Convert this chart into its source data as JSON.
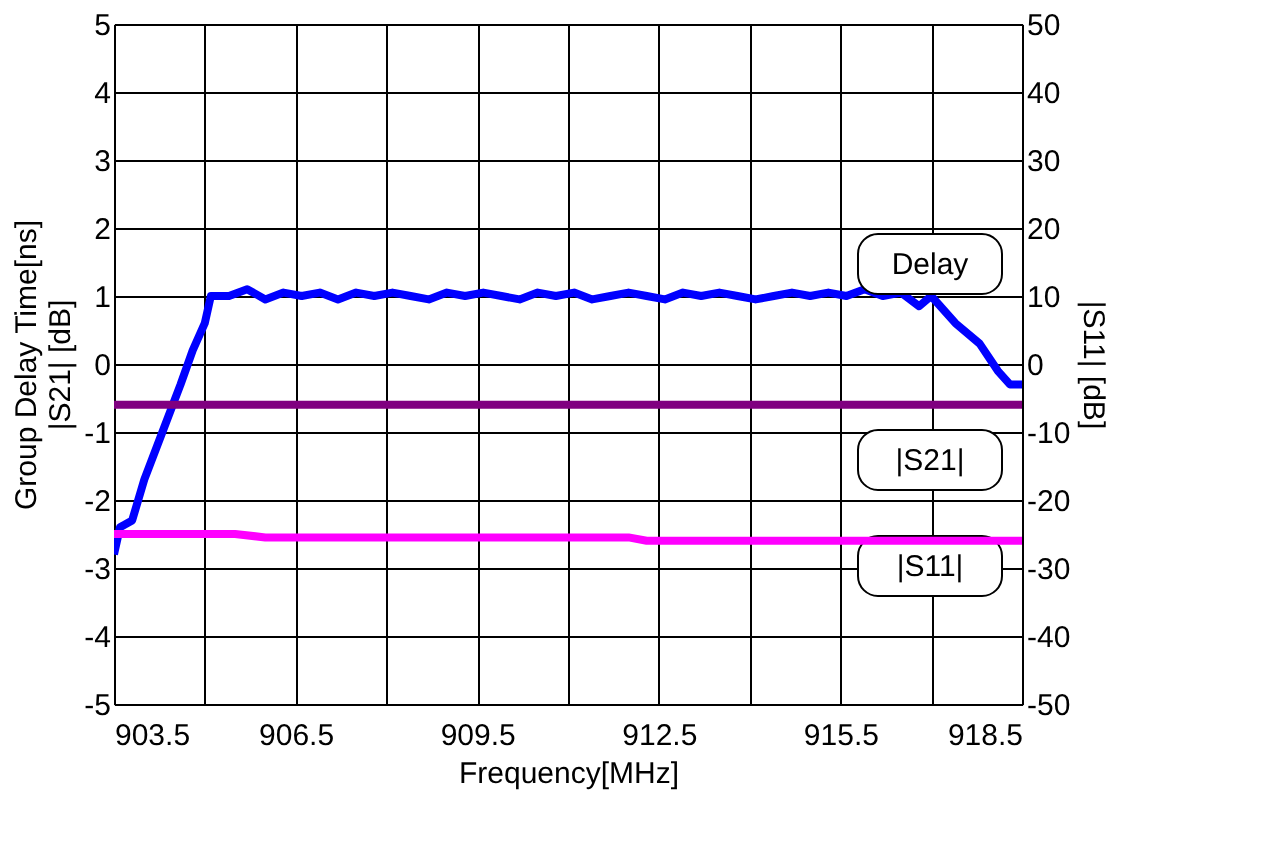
{
  "chart_data": {
    "type": "line",
    "xlabel": "Frequency[MHz]",
    "ylabel": "Group Delay Time[ns]\n|S21| [dB]",
    "y2label": "|S11| [dB]",
    "xlim": [
      903.5,
      918.5
    ],
    "xticks": [
      903.5,
      {
        "value": 905,
        "label": null
      },
      906.5,
      {
        "value": 908,
        "label": null
      },
      909.5,
      {
        "value": 911,
        "label": null
      },
      912.5,
      {
        "value": 914,
        "label": null
      },
      915.5,
      {
        "value": 917,
        "label": null
      },
      918.5
    ],
    "ylim": [
      -5,
      5
    ],
    "yticks": [
      -5,
      -4,
      -3,
      -2,
      -1,
      0,
      1,
      2,
      3,
      4,
      5
    ],
    "y2lim": [
      -50,
      50
    ],
    "y2ticks": [
      -50,
      -40,
      -30,
      -20,
      -10,
      0,
      10,
      20,
      30,
      40,
      50
    ],
    "grid": true,
    "legend": false,
    "line_style": "solid",
    "marker": "none",
    "series": [
      {
        "name": "Delay",
        "color": "#0000ff",
        "x": [
          903.5,
          903.6,
          903.8,
          904.0,
          904.3,
          904.6,
          904.8,
          905.0,
          905.1,
          905.4,
          905.7,
          906.0,
          906.3,
          906.6,
          906.9,
          907.2,
          907.5,
          907.8,
          908.1,
          908.4,
          908.7,
          909.0,
          909.3,
          909.6,
          909.9,
          910.2,
          910.5,
          910.8,
          911.1,
          911.4,
          911.7,
          912.0,
          912.3,
          912.6,
          912.9,
          913.2,
          913.5,
          913.8,
          914.1,
          914.4,
          914.7,
          915.0,
          915.3,
          915.6,
          915.9,
          916.2,
          916.5,
          916.8,
          917.0,
          917.4,
          917.8,
          918.1,
          918.3,
          918.5
        ],
        "values": [
          -2.8,
          -2.4,
          -2.3,
          -1.7,
          -1.0,
          -0.3,
          0.2,
          0.6,
          1.0,
          1.0,
          1.1,
          0.95,
          1.05,
          1.0,
          1.05,
          0.95,
          1.05,
          1.0,
          1.05,
          1.0,
          0.95,
          1.05,
          1.0,
          1.05,
          1.0,
          0.95,
          1.05,
          1.0,
          1.05,
          0.95,
          1.0,
          1.05,
          1.0,
          0.95,
          1.05,
          1.0,
          1.05,
          1.0,
          0.95,
          1.0,
          1.05,
          1.0,
          1.05,
          1.0,
          1.1,
          1.0,
          1.05,
          0.85,
          1.0,
          0.6,
          0.3,
          -0.1,
          -0.3,
          -0.3
        ]
      },
      {
        "name": "|S21|",
        "color": "#800080",
        "x": [
          903.5,
          918.5
        ],
        "values": [
          -0.6,
          -0.6
        ]
      },
      {
        "name": "|S11|",
        "color": "#ff00ff",
        "axis": "y2",
        "x": [
          903.5,
          905.5,
          906.0,
          912.0,
          912.3,
          918.5
        ],
        "values": [
          -25,
          -25,
          -25.5,
          -25.5,
          -26,
          -26
        ]
      }
    ]
  }
}
